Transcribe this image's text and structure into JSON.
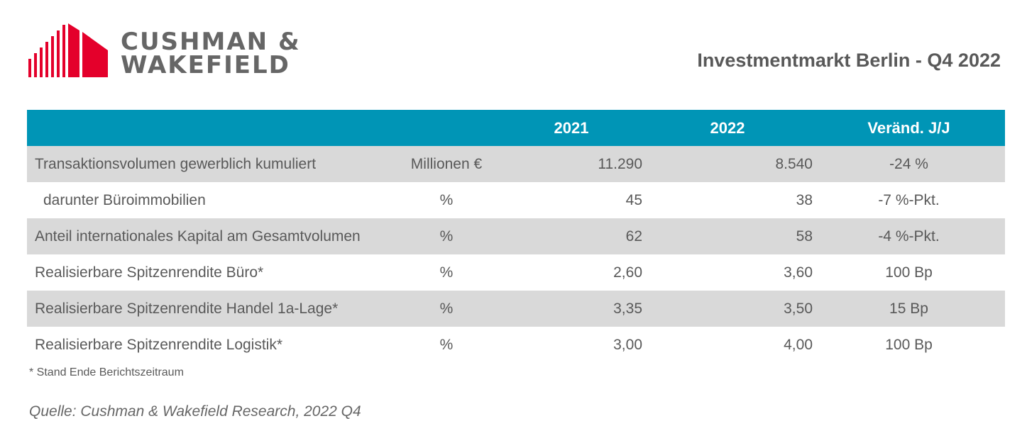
{
  "logo": {
    "line1": "CUSHMAN &",
    "line2": "WAKEFIELD",
    "color": "#e4002b"
  },
  "title": "Investmentmarkt Berlin - Q4 2022",
  "table": {
    "header": [
      "",
      "",
      "2021",
      "2022",
      "Veränd. J/J"
    ],
    "header_color": "#0095b6",
    "rows": [
      {
        "label": "Transaktionsvolumen gewerblich kumuliert",
        "unit": "Millionen €",
        "v2021": "11.290",
        "v2022": "8.540",
        "change": "-24 %"
      },
      {
        "label": "darunter Büroimmobilien",
        "unit": "%",
        "v2021": "45",
        "v2022": "38",
        "change": "-7 %-Pkt."
      },
      {
        "label": "Anteil internationales Kapital am Gesamtvolumen",
        "unit": "%",
        "v2021": "62",
        "v2022": "58",
        "change": "-4 %-Pkt."
      },
      {
        "label": "Realisierbare Spitzenrendite Büro*",
        "unit": "%",
        "v2021": "2,60",
        "v2022": "3,60",
        "change": "100 Bp"
      },
      {
        "label": "Realisierbare Spitzenrendite Handel 1a-Lage*",
        "unit": "%",
        "v2021": "3,35",
        "v2022": "3,50",
        "change": "15 Bp"
      },
      {
        "label": "Realisierbare Spitzenrendite Logistik*",
        "unit": "%",
        "v2021": "3,00",
        "v2022": "4,00",
        "change": "100 Bp"
      }
    ]
  },
  "footnote": "* Stand Ende Berichtszeitraum",
  "source": "Quelle: Cushman & Wakefield Research, 2022 Q4"
}
